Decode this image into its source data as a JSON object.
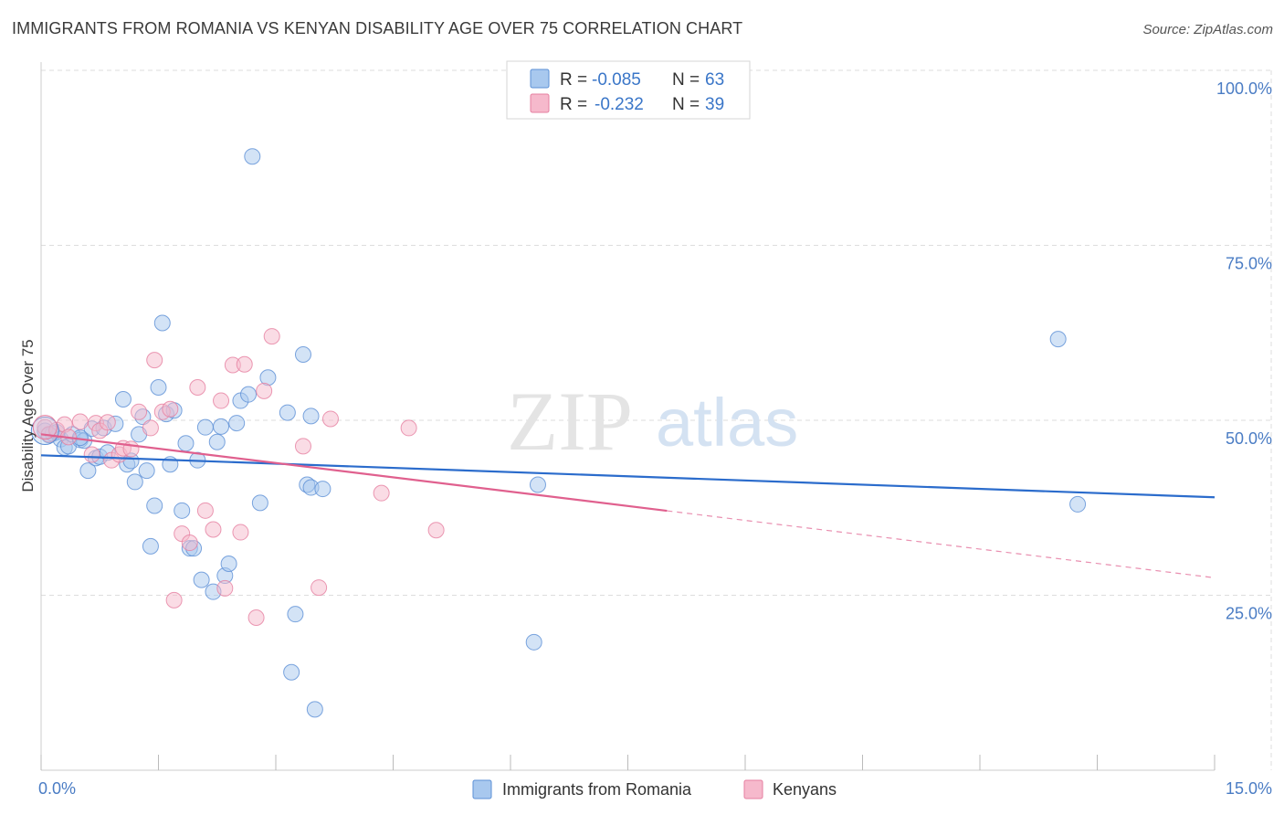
{
  "title": "IMMIGRANTS FROM ROMANIA VS KENYAN DISABILITY AGE OVER 75 CORRELATION CHART",
  "source": "Source: ZipAtlas.com",
  "watermark": {
    "zip": "ZIP",
    "atlas": "atlas"
  },
  "colors": {
    "blue_fill": "#a8c8ee",
    "blue_stroke": "#5b8fd6",
    "blue_line": "#2b6ccc",
    "pink_fill": "#f6b9cc",
    "pink_stroke": "#e67fa0",
    "pink_line": "#e0608e",
    "tick_text": "#4a7cc4",
    "grid": "#dddddd"
  },
  "legend": {
    "rows": [
      {
        "r_label": "R = ",
        "r_value": "-0.085",
        "n_label": "N = ",
        "n_value": "63"
      },
      {
        "r_label": "R = ",
        "r_value": "-0.232",
        "n_label": "N = ",
        "n_value": "39"
      }
    ]
  },
  "bottom_legend": [
    "Immigrants from Romania",
    "Kenyans"
  ],
  "chart_data": {
    "type": "scatter",
    "title": "IMMIGRANTS FROM ROMANIA VS KENYAN DISABILITY AGE OVER 75 CORRELATION CHART",
    "xlabel": "",
    "ylabel": "Disability Age Over 75",
    "xlim": [
      0,
      15
    ],
    "ylim": [
      0,
      100
    ],
    "x_tick_labels": [
      "0.0%",
      "15.0%"
    ],
    "y_ticks": [
      25,
      50,
      75,
      100
    ],
    "y_tick_labels": [
      "25.0%",
      "50.0%",
      "75.0%",
      "100.0%"
    ],
    "grid": true,
    "legend_position": "top-center",
    "series": [
      {
        "name": "Immigrants from Romania",
        "R": -0.085,
        "N": 63,
        "trend": {
          "x": [
            0,
            15
          ],
          "y": [
            45.0,
            39.0
          ],
          "dashed_from": null
        },
        "points": [
          [
            0.05,
            48.5
          ],
          [
            0.1,
            47.9
          ],
          [
            0.15,
            48.1
          ],
          [
            0.2,
            48.3
          ],
          [
            0.25,
            47.3
          ],
          [
            0.3,
            46.1
          ],
          [
            0.35,
            46.3
          ],
          [
            0.4,
            48.0
          ],
          [
            0.5,
            47.2
          ],
          [
            0.55,
            47.1
          ],
          [
            0.6,
            42.8
          ],
          [
            0.65,
            48.8
          ],
          [
            0.7,
            44.6
          ],
          [
            0.75,
            44.8
          ],
          [
            0.8,
            48.9
          ],
          [
            0.85,
            45.4
          ],
          [
            0.95,
            49.5
          ],
          [
            1.05,
            53.0
          ],
          [
            1.1,
            43.7
          ],
          [
            1.15,
            44.2
          ],
          [
            1.2,
            41.2
          ],
          [
            1.25,
            48.0
          ],
          [
            1.3,
            50.5
          ],
          [
            1.35,
            42.8
          ],
          [
            1.4,
            32.0
          ],
          [
            1.45,
            37.8
          ],
          [
            1.5,
            54.7
          ],
          [
            1.55,
            63.9
          ],
          [
            1.6,
            50.9
          ],
          [
            1.65,
            43.7
          ],
          [
            1.7,
            51.4
          ],
          [
            1.8,
            37.1
          ],
          [
            1.85,
            46.7
          ],
          [
            1.9,
            31.7
          ],
          [
            1.95,
            31.7
          ],
          [
            2.0,
            44.3
          ],
          [
            2.05,
            27.2
          ],
          [
            2.1,
            49.0
          ],
          [
            2.2,
            25.5
          ],
          [
            2.25,
            46.9
          ],
          [
            2.3,
            49.1
          ],
          [
            2.35,
            27.8
          ],
          [
            2.4,
            29.5
          ],
          [
            2.5,
            49.6
          ],
          [
            2.55,
            52.8
          ],
          [
            2.65,
            53.7
          ],
          [
            2.7,
            87.7
          ],
          [
            2.8,
            38.2
          ],
          [
            2.9,
            56.1
          ],
          [
            3.15,
            51.1
          ],
          [
            3.2,
            14.0
          ],
          [
            3.25,
            22.3
          ],
          [
            3.35,
            59.4
          ],
          [
            3.4,
            40.8
          ],
          [
            3.45,
            40.4
          ],
          [
            3.5,
            8.7
          ],
          [
            3.45,
            50.6
          ],
          [
            3.6,
            40.2
          ],
          [
            6.3,
            18.3
          ],
          [
            6.35,
            40.8
          ],
          [
            13.0,
            61.6
          ],
          [
            13.25,
            38.0
          ],
          [
            0.5,
            47.5
          ]
        ]
      },
      {
        "name": "Kenyans",
        "R": -0.232,
        "N": 39,
        "trend": {
          "x": [
            0,
            15
          ],
          "y": [
            48.0,
            27.5
          ],
          "dashed_from": 8.0
        },
        "points": [
          [
            0.05,
            49.0
          ],
          [
            0.1,
            48.0
          ],
          [
            0.2,
            48.6
          ],
          [
            0.3,
            49.4
          ],
          [
            0.35,
            47.6
          ],
          [
            0.5,
            49.8
          ],
          [
            0.65,
            45.1
          ],
          [
            0.7,
            49.6
          ],
          [
            0.75,
            48.5
          ],
          [
            0.85,
            49.7
          ],
          [
            0.9,
            44.3
          ],
          [
            1.0,
            45.1
          ],
          [
            1.05,
            46.0
          ],
          [
            1.15,
            45.9
          ],
          [
            1.25,
            51.2
          ],
          [
            1.4,
            48.9
          ],
          [
            1.45,
            58.6
          ],
          [
            1.55,
            51.2
          ],
          [
            1.65,
            51.6
          ],
          [
            1.7,
            24.3
          ],
          [
            1.8,
            33.8
          ],
          [
            1.9,
            32.5
          ],
          [
            2.0,
            54.7
          ],
          [
            2.1,
            37.1
          ],
          [
            2.2,
            34.4
          ],
          [
            2.3,
            52.8
          ],
          [
            2.35,
            26.0
          ],
          [
            2.45,
            57.9
          ],
          [
            2.55,
            34.0
          ],
          [
            2.6,
            58.0
          ],
          [
            2.75,
            21.8
          ],
          [
            2.85,
            54.2
          ],
          [
            2.95,
            62.0
          ],
          [
            3.35,
            46.3
          ],
          [
            3.55,
            26.1
          ],
          [
            3.7,
            50.2
          ],
          [
            4.35,
            39.6
          ],
          [
            4.7,
            48.9
          ],
          [
            5.05,
            34.3
          ]
        ]
      }
    ]
  }
}
